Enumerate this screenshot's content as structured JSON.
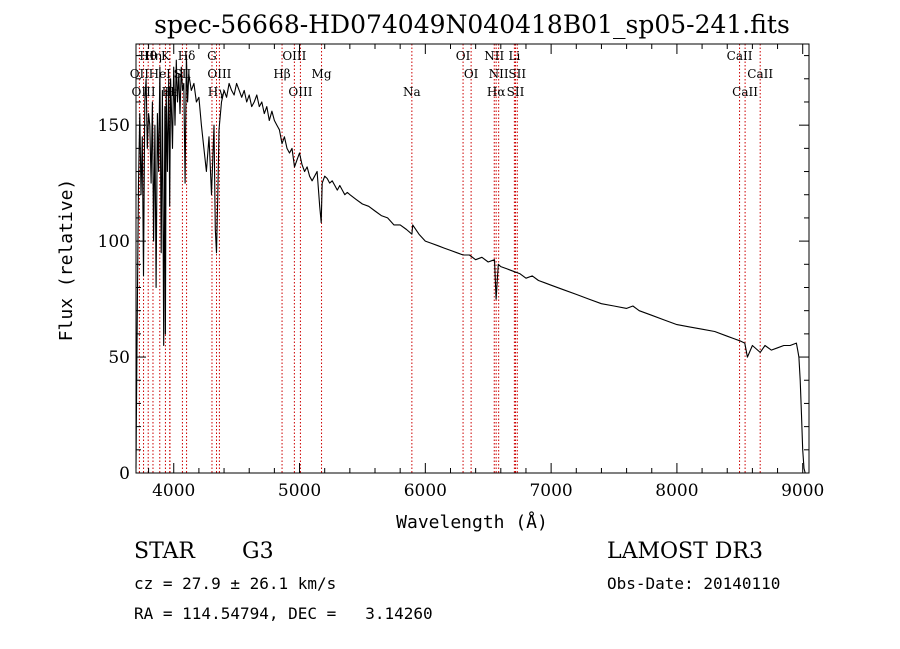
{
  "chart_data": {
    "type": "line",
    "title": "spec-56668-HD074049N040418B01_sp05-241.fits",
    "xlabel": "Wavelength (Å)",
    "ylabel": "Flux (relative)",
    "xlim": [
      3700,
      9050
    ],
    "ylim": [
      0,
      185
    ],
    "xticks": [
      4000,
      5000,
      6000,
      7000,
      8000,
      9000
    ],
    "yticks": [
      0,
      50,
      100,
      150
    ],
    "grid": false,
    "series": [
      {
        "name": "flux",
        "x": [
          3700,
          3705,
          3710,
          3720,
          3730,
          3740,
          3750,
          3760,
          3770,
          3780,
          3790,
          3800,
          3810,
          3820,
          3830,
          3840,
          3850,
          3860,
          3870,
          3880,
          3890,
          3900,
          3910,
          3920,
          3930,
          3934,
          3940,
          3950,
          3960,
          3968,
          3975,
          3990,
          4000,
          4010,
          4020,
          4030,
          4040,
          4050,
          4060,
          4070,
          4080,
          4090,
          4101,
          4110,
          4120,
          4140,
          4160,
          4180,
          4200,
          4220,
          4240,
          4260,
          4280,
          4300,
          4320,
          4330,
          4340,
          4350,
          4360,
          4380,
          4400,
          4420,
          4440,
          4460,
          4480,
          4500,
          4520,
          4540,
          4560,
          4580,
          4600,
          4620,
          4640,
          4660,
          4680,
          4700,
          4720,
          4740,
          4760,
          4780,
          4800,
          4820,
          4840,
          4861,
          4880,
          4900,
          4920,
          4940,
          4960,
          4980,
          5000,
          5020,
          5040,
          5060,
          5080,
          5100,
          5120,
          5140,
          5160,
          5172,
          5180,
          5200,
          5220,
          5240,
          5260,
          5280,
          5300,
          5320,
          5340,
          5360,
          5380,
          5400,
          5450,
          5500,
          5550,
          5600,
          5650,
          5700,
          5750,
          5800,
          5850,
          5893,
          5900,
          5950,
          6000,
          6050,
          6100,
          6150,
          6200,
          6250,
          6300,
          6350,
          6400,
          6450,
          6500,
          6550,
          6563,
          6580,
          6600,
          6650,
          6700,
          6750,
          6800,
          6850,
          6900,
          6950,
          7000,
          7100,
          7200,
          7300,
          7400,
          7500,
          7600,
          7650,
          7700,
          7800,
          7900,
          8000,
          8100,
          8200,
          8300,
          8400,
          8450,
          8500,
          8540,
          8560,
          8600,
          8662,
          8700,
          8750,
          8800,
          8850,
          8900,
          8950,
          8960,
          8970,
          8980,
          8990,
          9000,
          9010,
          9020
        ],
        "values": [
          2,
          35,
          70,
          125,
          155,
          120,
          145,
          85,
          160,
          170,
          140,
          155,
          150,
          125,
          160,
          100,
          150,
          80,
          155,
          130,
          175,
          95,
          165,
          55,
          158,
          60,
          165,
          130,
          170,
          115,
          170,
          140,
          175,
          150,
          178,
          160,
          172,
          155,
          175,
          165,
          168,
          125,
          180,
          160,
          172,
          165,
          168,
          160,
          162,
          150,
          140,
          130,
          145,
          120,
          150,
          105,
          95,
          120,
          148,
          160,
          165,
          162,
          168,
          165,
          163,
          168,
          165,
          162,
          165,
          160,
          163,
          158,
          160,
          163,
          158,
          160,
          155,
          158,
          152,
          156,
          152,
          150,
          148,
          142,
          145,
          140,
          138,
          140,
          132,
          135,
          138,
          133,
          130,
          132,
          128,
          126,
          128,
          130,
          115,
          108,
          125,
          128,
          127,
          125,
          126,
          124,
          122,
          124,
          122,
          120,
          121,
          120,
          118,
          116,
          115,
          113,
          111,
          110,
          107,
          107,
          105,
          103,
          107,
          103,
          100,
          99,
          98,
          97,
          96,
          95,
          94,
          94,
          92,
          93,
          91,
          92,
          75,
          90,
          89,
          88,
          87,
          86,
          84,
          85,
          83,
          82,
          81,
          79,
          77,
          75,
          73,
          72,
          71,
          72,
          70,
          68,
          66,
          64,
          63,
          62,
          61,
          59,
          58,
          57,
          56,
          50,
          55,
          52,
          55,
          53,
          54,
          55,
          55,
          56,
          53,
          50,
          40,
          25,
          10,
          2,
          0
        ]
      }
    ],
    "lines": [
      {
        "name": "Hθ",
        "x": 3797
      },
      {
        "name": "OII",
        "x": 3727
      },
      {
        "name": "OIII",
        "x": 3760
      },
      {
        "name": "K",
        "x": 3934
      },
      {
        "name": "HeI",
        "x": 3889
      },
      {
        "name": "Hε",
        "x": 3970
      },
      {
        "name": "Hη",
        "x": 3835
      },
      {
        "name": "SII",
        "x": 4069
      },
      {
        "name": "H",
        "x": 3968
      },
      {
        "name": "Hδ",
        "x": 4102
      },
      {
        "name": "OIII",
        "x": 4363
      },
      {
        "name": "Hγ",
        "x": 4340
      },
      {
        "name": "G",
        "x": 4304
      },
      {
        "name": "Hβ",
        "x": 4861
      },
      {
        "name": "OIII",
        "x": 5007
      },
      {
        "name": "OIII",
        "x": 4959
      },
      {
        "name": "Mg",
        "x": 5175
      },
      {
        "name": "Na",
        "x": 5893
      },
      {
        "name": "OI",
        "x": 6300
      },
      {
        "name": "OI",
        "x": 6364
      },
      {
        "name": "Hα",
        "x": 6563
      },
      {
        "name": "NII",
        "x": 6548
      },
      {
        "name": "NII",
        "x": 6583
      },
      {
        "name": "SII",
        "x": 6717
      },
      {
        "name": "Li",
        "x": 6708
      },
      {
        "name": "SII",
        "x": 6731
      },
      {
        "name": "CaII",
        "x": 8542
      },
      {
        "name": "CaII",
        "x": 8498
      },
      {
        "name": "CaII",
        "x": 8662
      }
    ]
  },
  "info": {
    "object_class": "STAR",
    "subclass": "G3",
    "survey": "LAMOST DR3",
    "redshift": "cz = 27.9 ± 26.1 km/s",
    "obs_date": "Obs-Date: 20140110",
    "coords": "RA = 114.54794, DEC =   3.14260"
  },
  "colors": {
    "line_marker": "#cc0000",
    "spectrum": "#000000",
    "axes": "#000000"
  }
}
